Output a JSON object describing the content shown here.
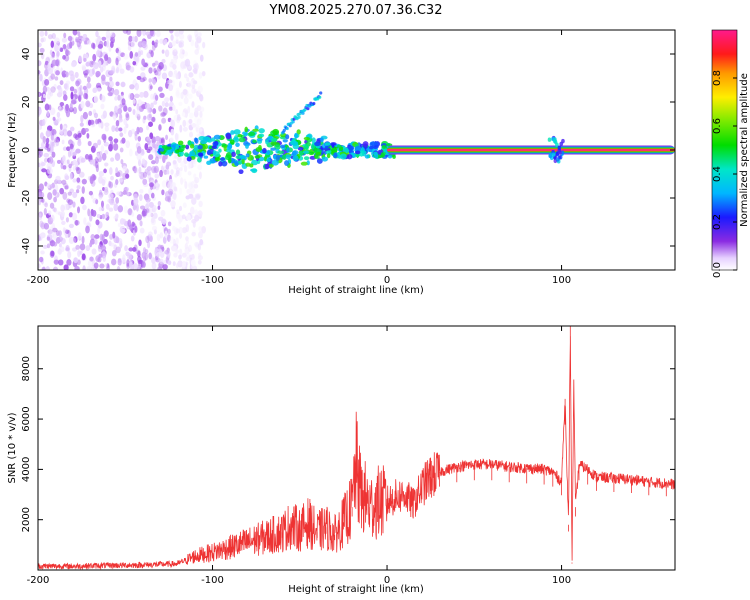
{
  "title": "YM08.2025.270.07.36.C32",
  "chart_data": [
    {
      "type": "heatmap",
      "xlabel": "Height of straight line (km)",
      "ylabel": "Frequency (Hz)",
      "xlim": [
        -200,
        165
      ],
      "ylim": [
        -50,
        50
      ],
      "xticks": [
        -200,
        -100,
        0,
        100
      ],
      "yticks": [
        -40,
        -20,
        0,
        20,
        40
      ],
      "colorbar": {
        "label": "Normalized spectral amplitude",
        "range": [
          0,
          1
        ],
        "ticks": [
          0.0,
          0.2,
          0.4,
          0.6,
          0.8
        ]
      },
      "features": [
        {
          "name": "noise_region",
          "x_from": -200,
          "x_to": -115,
          "amplitude": 0.1
        },
        {
          "name": "signal_band_rising",
          "x_from": -130,
          "x_to": 5,
          "frequency_hz": 0,
          "amplitude": 0.45
        },
        {
          "name": "upper_branch",
          "x_from": -60,
          "x_to": -38,
          "frequency_from": 8,
          "frequency_to": 23,
          "amplitude": 0.35
        },
        {
          "name": "strong_band",
          "x_from": 0,
          "x_to": 165,
          "frequency_hz": 0,
          "amplitude": 1.0
        },
        {
          "name": "disturbance",
          "x": 97,
          "frequency_hz": 0,
          "amplitude": 0.3
        }
      ]
    },
    {
      "type": "line",
      "xlabel": "Height of straight line (km)",
      "ylabel": "SNR (10 * v/v)",
      "xlim": [
        -200,
        165
      ],
      "ylim": [
        0,
        9700
      ],
      "xticks": [
        -200,
        -100,
        0,
        100
      ],
      "yticks": [
        2000,
        4000,
        6000,
        8000
      ],
      "series": [
        {
          "name": "SNR",
          "color": "#ee3333",
          "x": [
            -200,
            -180,
            -160,
            -140,
            -120,
            -110,
            -100,
            -90,
            -80,
            -70,
            -60,
            -55,
            -50,
            -45,
            -40,
            -35,
            -30,
            -25,
            -20,
            -18,
            -15,
            -12,
            -10,
            -5,
            0,
            5,
            10,
            15,
            20,
            25,
            30,
            40,
            50,
            60,
            70,
            80,
            90,
            95,
            100,
            102,
            104,
            105,
            106,
            107,
            108,
            110,
            115,
            120,
            130,
            140,
            150,
            160,
            165
          ],
          "y": [
            150,
            150,
            180,
            200,
            250,
            550,
            700,
            900,
            1100,
            1300,
            1500,
            1800,
            1600,
            1900,
            1500,
            1700,
            1400,
            1900,
            2500,
            4200,
            3000,
            2800,
            2500,
            2700,
            2700,
            2900,
            3000,
            2600,
            3300,
            3700,
            3900,
            4100,
            4200,
            4200,
            4100,
            4050,
            4000,
            3900,
            3500,
            6800,
            1800,
            9700,
            300,
            7500,
            2500,
            4200,
            4000,
            3700,
            3650,
            3600,
            3500,
            3450,
            3400
          ]
        }
      ]
    }
  ]
}
